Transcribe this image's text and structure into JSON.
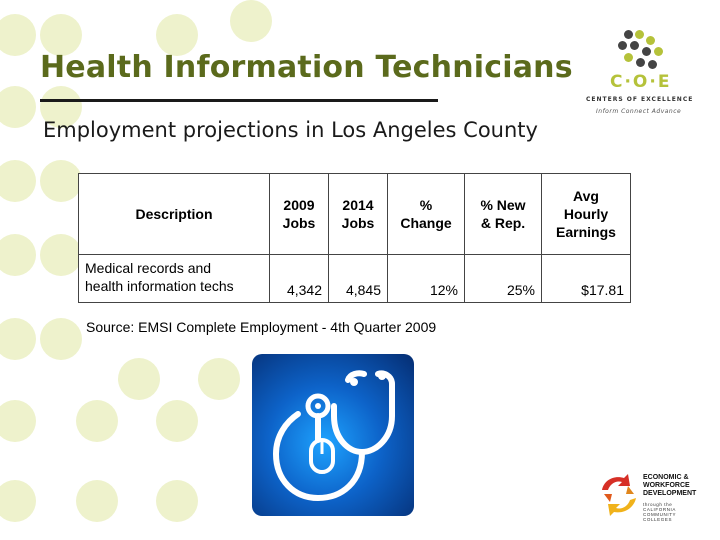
{
  "slide": {
    "title": "Health Information Technicians",
    "subtitle": "Employment projections in Los Angeles County"
  },
  "table": {
    "headers": {
      "description": "Description",
      "jobs_2009_line1": "2009",
      "jobs_2009_line2": "Jobs",
      "jobs_2014_line1": "2014",
      "jobs_2014_line2": "Jobs",
      "pct_change_line1": "%",
      "pct_change_line2": "Change",
      "pct_new_line1": "% New",
      "pct_new_line2": "& Rep.",
      "avg_line1": "Avg",
      "avg_line2": "Hourly",
      "avg_line3": "Earnings"
    },
    "rows": [
      {
        "description_line1": "Medical records and",
        "description_line2": "health information techs",
        "jobs_2009": "4,342",
        "jobs_2014": "4,845",
        "pct_change": "12%",
        "pct_new_rep": "25%",
        "avg_hourly": "$17.81"
      }
    ]
  },
  "source": "Source: EMSI Complete Employment - 4th Quarter 2009",
  "logo_coe": {
    "mark": "C·O·E",
    "line": "CENTERS OF EXCELLENCE",
    "tagline": "Inform  Connect  Advance"
  },
  "logo_ewd": {
    "line1": "ECONOMIC &",
    "line2": "WORKFORCE",
    "line3": "DEVELOPMENT",
    "sub1": "through the",
    "sub2": "CALIFORNIA",
    "sub3": "COMMUNITY",
    "sub4": "COLLEGES"
  },
  "icons": {
    "center": "stethoscope-mouse-icon"
  },
  "colors": {
    "title": "#5b6a1c",
    "background_dots": "#eef2cc",
    "logo_accent": "#b5c23a",
    "icon_tile": "#0d63c9"
  }
}
